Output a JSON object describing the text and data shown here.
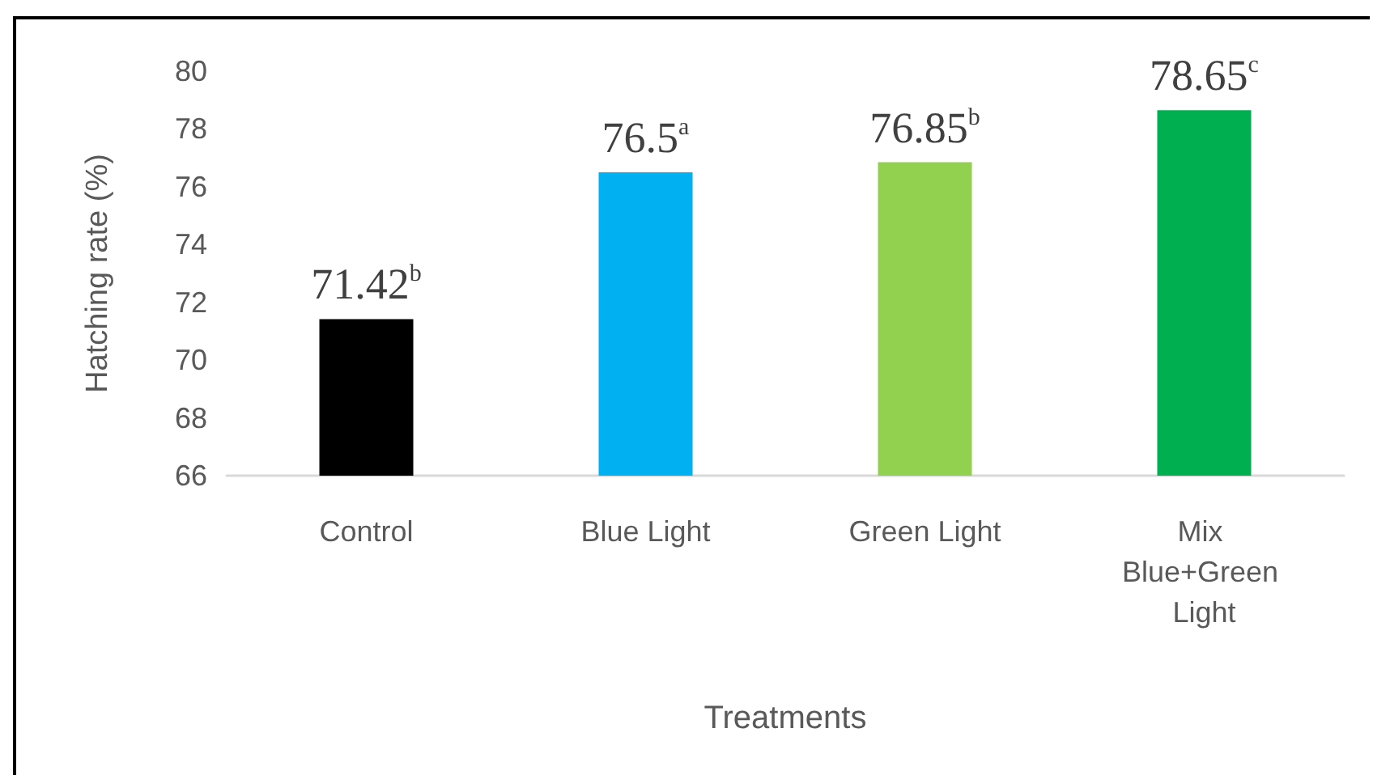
{
  "chart_data": {
    "type": "bar",
    "xlabel": "Treatments",
    "ylabel": "Hatching rate (%)",
    "categories": [
      "Control",
      "Blue Light",
      "Green Light",
      "Mix Blue+Green Light"
    ],
    "values": [
      71.42,
      76.5,
      76.85,
      78.65
    ],
    "colors": [
      "#000000",
      "#00b0f0",
      "#92d050",
      "#00b050"
    ],
    "value_labels": [
      "71.42$^{b}$",
      "76.5$^{a}$",
      "76.85$^{b}$",
      "78.65$^{c}$"
    ],
    "ylim": [
      66,
      80
    ],
    "yticks": [
      66,
      68,
      70,
      72,
      74,
      76,
      78,
      80
    ],
    "grid": false
  }
}
